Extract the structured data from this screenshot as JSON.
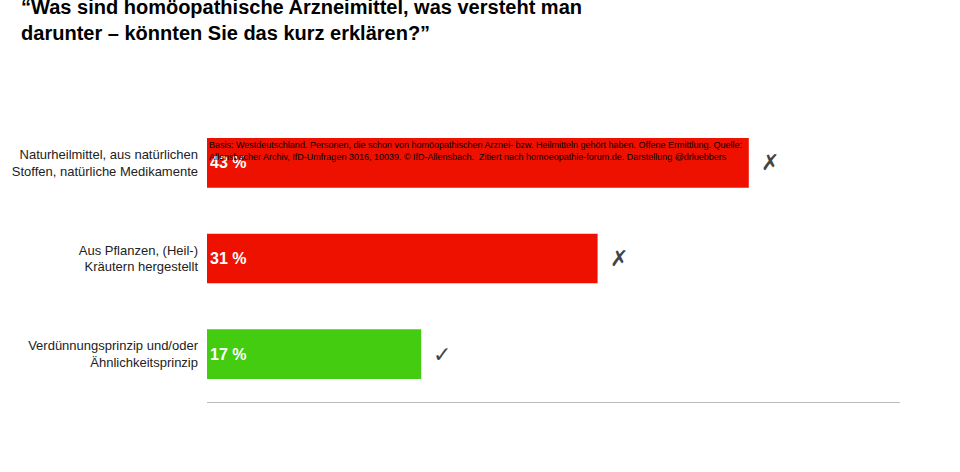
{
  "chart_data": {
    "type": "bar",
    "orientation": "horizontal",
    "title": "“Was sind homöopathische Arzneimittel, was versteht man\ndarunter – könnten Sie das kurz erklären?”",
    "categories": [
      "Naturheilmittel, aus natürlichen\nStoffen, natürliche Medikamente",
      "Aus Pflanzen, (Heil-)\nKräutern hergestellt",
      "Verdünnungsprinzip und/oder\nÄhnlichkeitsprinzip"
    ],
    "values": [
      43,
      31,
      17
    ],
    "value_labels": [
      "43 %",
      "31 %",
      "17 %"
    ],
    "data_labels": true,
    "colors": [
      "#ee1100",
      "#ee1100",
      "#44cc11"
    ],
    "xlim": [
      0,
      55
    ],
    "grid": false,
    "tick_labels": "y",
    "annotations": [
      {
        "text": "✗",
        "category": "Naturheilmittel, aus natürlichen\nStoffen, natürliche Medikamente",
        "color": "#444444"
      },
      {
        "text": "✗",
        "category": "Aus Pflanzen, (Heil-)\nKräutern hergestellt",
        "color": "#444444"
      },
      {
        "text": "✓",
        "category": "Verdünnungsprinzip und/oder\nÄhnlichkeitsprinzip",
        "color": "#444444"
      },
      {
        "text": "Basis: Westdeutschland. Personen, die schon von homöopathischen Arznei- bzw. Heilmitteln gehört haben. Offene Ermittlung. Quelle:\nAllensbacher Archiv, IfD-Umfragen 3016, 10039. © IfD-Allensbach.  Zitiert nach homoeopathie-forum.de. Darstellung @drluebbers"
      }
    ]
  }
}
